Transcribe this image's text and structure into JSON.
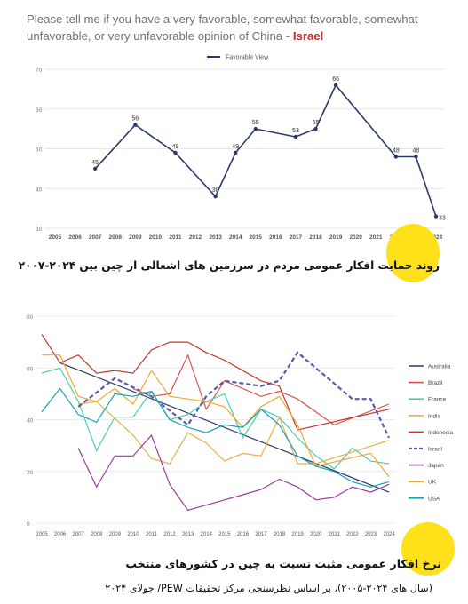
{
  "header": {
    "question": "Please tell me if you have a very favorable, somewhat favorable, somewhat unfavorable, or very unfavorable opinion of China -",
    "country": "Israel"
  },
  "caption1": "روند حمایت افکار عمومی مردم در سرزمین های اشغالی از چین بین ۲۰۲۴-۲۰۰۷",
  "caption2": {
    "line1": "نرخ افکار عمومی مثبت نسبت به چین در کشورهای منتخب",
    "line2": "(سال های ۲۰۲۴-۲۰۰۵)، بر اساس نظرسنجی مرکز تحقیقات PEW/ جولای ۲۰۲۴"
  },
  "chart_data": [
    {
      "type": "line",
      "title": "",
      "legend": [
        "Favorable View"
      ],
      "legend_position": "top-center",
      "categories": [
        "2005",
        "2006",
        "2007",
        "2008",
        "2009",
        "2010",
        "2011",
        "2012",
        "2013",
        "2014",
        "2015",
        "2016",
        "2017",
        "2018",
        "2019",
        "2020",
        "2021",
        "2022",
        "2023",
        "2024"
      ],
      "series": [
        {
          "name": "Favorable View",
          "color": "#2b3a67",
          "values": [
            null,
            null,
            45,
            null,
            56,
            null,
            49,
            null,
            38,
            49,
            55,
            null,
            53,
            55,
            66,
            null,
            null,
            48,
            48,
            33
          ]
        }
      ],
      "data_labels": [
        "45",
        "56",
        "49",
        "38",
        "49",
        "55",
        "53",
        "55",
        "66",
        "48",
        "48",
        "33"
      ],
      "yticks": [
        "30",
        "40",
        "50",
        "60",
        "70"
      ],
      "ylim": [
        30,
        70
      ],
      "grid": "horizontal"
    },
    {
      "type": "line",
      "title": "",
      "legend_position": "right",
      "categories": [
        "2005",
        "2006",
        "2007",
        "2008",
        "2009",
        "2010",
        "2011",
        "2012",
        "2013",
        "2014",
        "2015",
        "2016",
        "2017",
        "2018",
        "2019",
        "2020",
        "2021",
        "2022",
        "2023",
        "2024"
      ],
      "yticks": [
        "0",
        "20",
        "40",
        "60",
        "80"
      ],
      "ylim": [
        0,
        80
      ],
      "grid": "horizontal",
      "series": [
        {
          "name": "Australia",
          "color": "#2b3a67",
          "dashed": false,
          "values": [
            null,
            62,
            null,
            null,
            null,
            null,
            null,
            null,
            null,
            null,
            null,
            null,
            null,
            null,
            null,
            null,
            null,
            null,
            null,
            12
          ]
        },
        {
          "name": "Brazil",
          "color": "#d9534f",
          "dashed": false,
          "values": [
            null,
            null,
            null,
            null,
            null,
            52,
            49,
            50,
            65,
            44,
            55,
            52,
            49,
            51,
            48,
            43,
            38,
            null,
            null,
            46
          ]
        },
        {
          "name": "France",
          "color": "#4ecdb0",
          "dashed": false,
          "values": [
            58,
            60,
            47,
            28,
            41,
            41,
            51,
            40,
            42,
            47,
            50,
            33,
            44,
            41,
            33,
            26,
            21,
            29,
            24,
            23
          ]
        },
        {
          "name": "India",
          "color": "#e8b04a",
          "dashed": false,
          "values": [
            null,
            null,
            46,
            47,
            null,
            34,
            25,
            23,
            35,
            31,
            24,
            27,
            26,
            41,
            23,
            23,
            null,
            null,
            null,
            32
          ]
        },
        {
          "name": "Indonesia",
          "color": "#c0392b",
          "dashed": false,
          "values": [
            73,
            62,
            65,
            58,
            59,
            58,
            67,
            70,
            70,
            66,
            63,
            null,
            55,
            53,
            36,
            null,
            null,
            null,
            null,
            44
          ]
        },
        {
          "name": "Israel",
          "color": "#5a5aa8",
          "dashed": true,
          "values": [
            null,
            null,
            45,
            null,
            56,
            null,
            49,
            null,
            38,
            49,
            55,
            null,
            53,
            55,
            66,
            null,
            null,
            48,
            48,
            33
          ]
        },
        {
          "name": "Japan",
          "color": "#9b3c9b",
          "dashed": false,
          "values": [
            null,
            null,
            29,
            14,
            26,
            26,
            34,
            15,
            5,
            7,
            9,
            11,
            13,
            17,
            14,
            9,
            10,
            14,
            12,
            15
          ]
        },
        {
          "name": "UK",
          "color": "#f0a830",
          "dashed": false,
          "values": [
            65,
            65,
            49,
            47,
            52,
            46,
            59,
            49,
            48,
            47,
            45,
            37,
            45,
            49,
            38,
            22,
            null,
            null,
            27,
            18
          ]
        },
        {
          "name": "USA",
          "color": "#17a2b8",
          "dashed": false,
          "values": [
            43,
            52,
            42,
            39,
            50,
            49,
            51,
            40,
            37,
            35,
            38,
            37,
            44,
            38,
            26,
            22,
            20,
            16,
            14,
            16
          ]
        }
      ]
    }
  ]
}
